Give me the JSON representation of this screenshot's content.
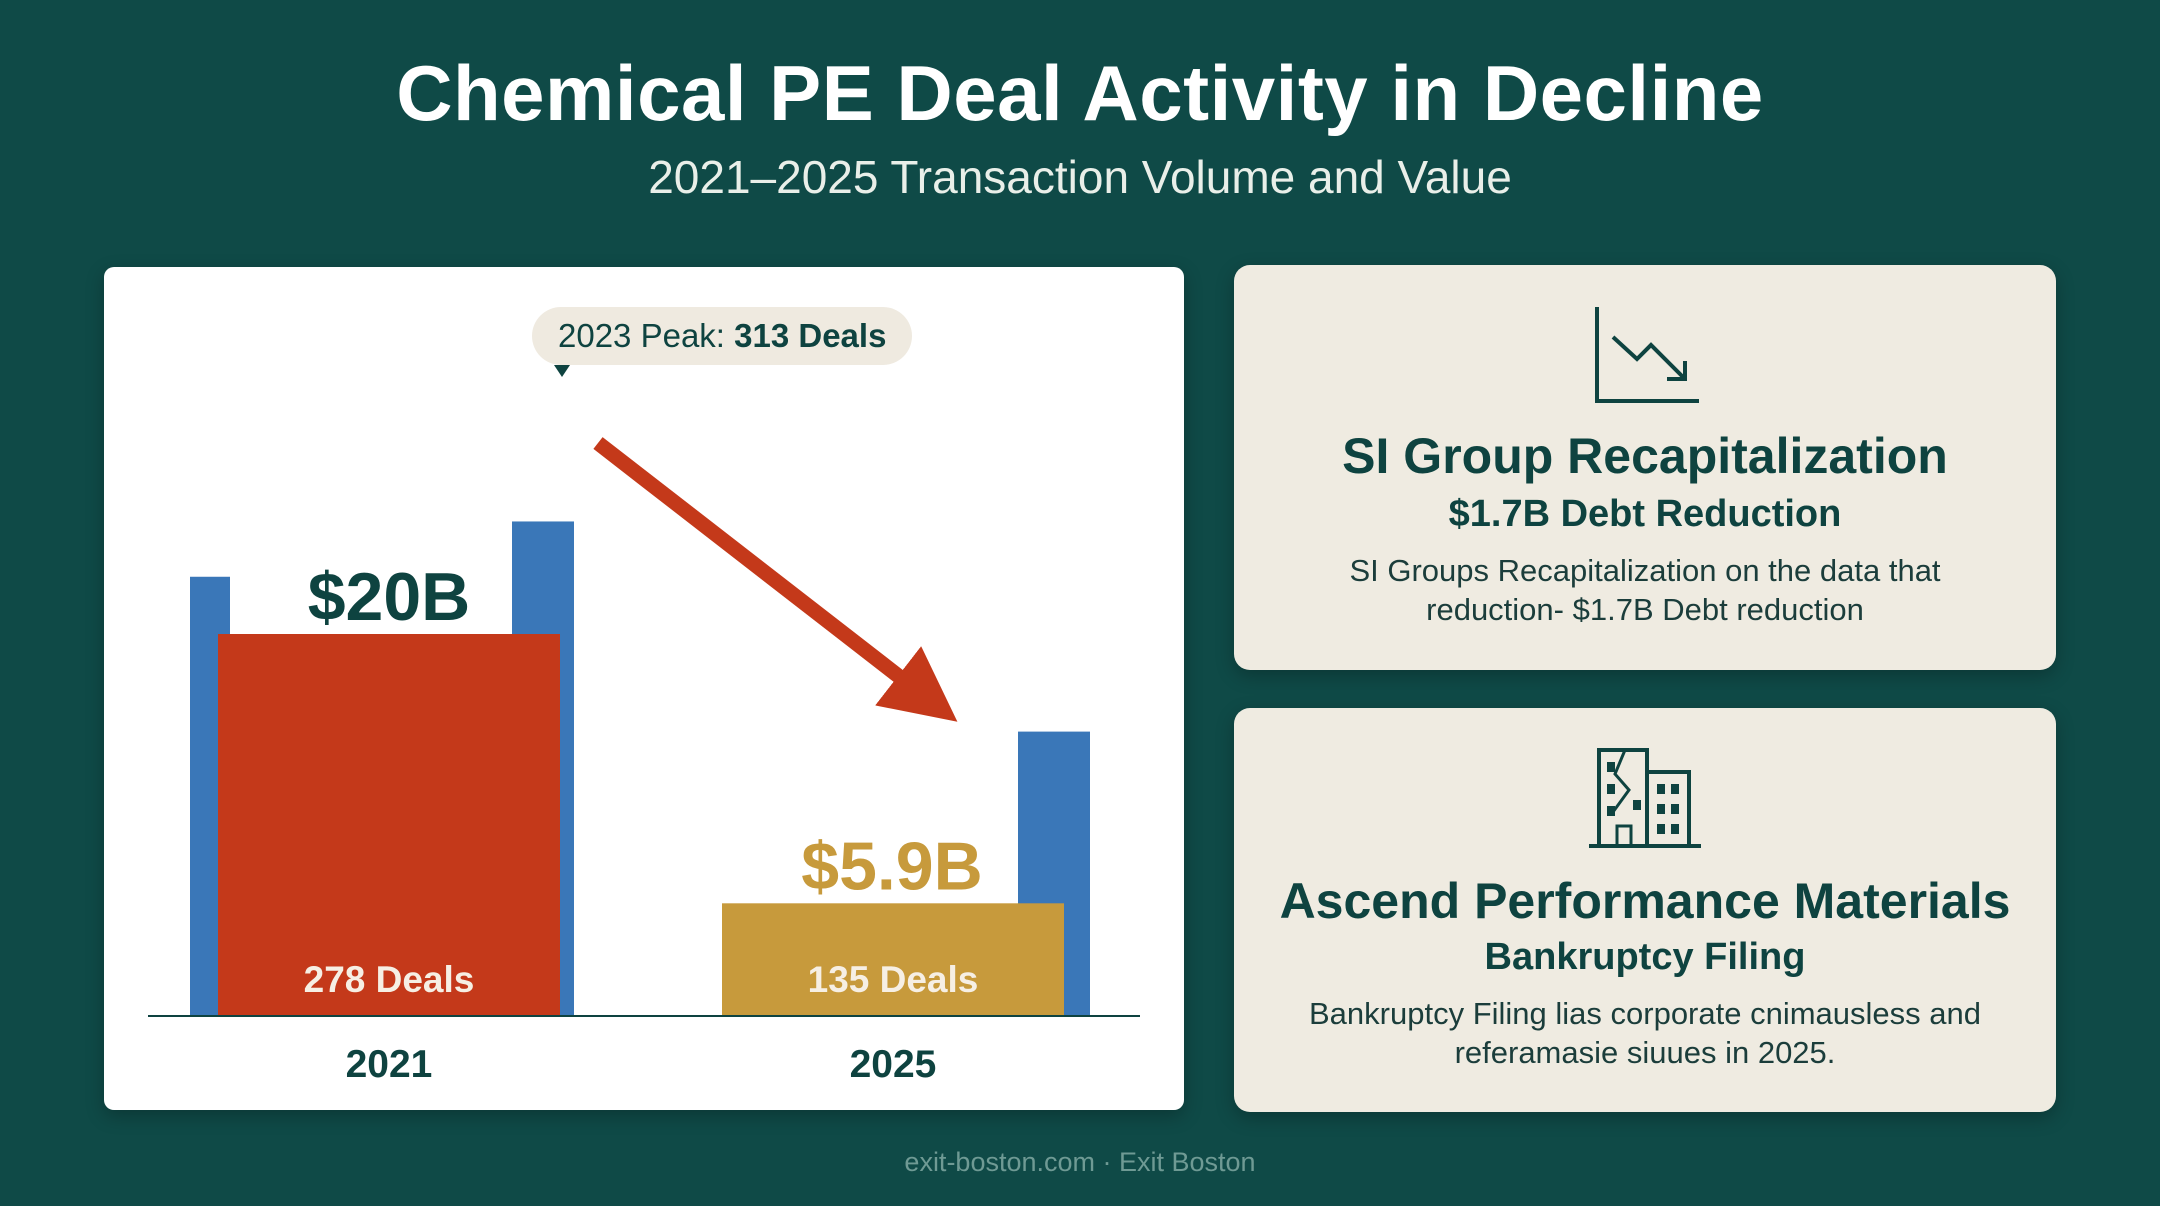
{
  "header": {
    "title": "Chemical PE Deal Activity in Decline",
    "subtitle": "2021–2025 Transaction Volume and Value"
  },
  "chart_data": {
    "type": "bar",
    "title": "Chemical PE Deal Activity in Decline",
    "subtitle": "2021–2025 Transaction Volume and Value",
    "categories": [
      "2021",
      "2025"
    ],
    "series": [
      {
        "value_labels": [
          "$20B",
          "$5.9B"
        ],
        "values": [
          20,
          5.9
        ],
        "deal_labels": [
          "278 Deals",
          "135 Deals"
        ],
        "deal_counts": [
          278,
          135
        ],
        "colors": [
          "#c4391a",
          "#c79a3c"
        ]
      }
    ],
    "volume_bars": {
      "color": "#3a77b8",
      "back_2021": 278,
      "peak_2023": 313,
      "back_2025": 135,
      "behind_2025": 180
    },
    "annotation": {
      "prefix": "2023 Peak: ",
      "bold": "313 Deals"
    },
    "trend_arrow_color": "#c4391a",
    "label_colors": {
      "2021": "#0e4340",
      "2025": "#c79a3c"
    },
    "grid": false,
    "legend": "none"
  },
  "cards": [
    {
      "icon": "trend-down-chart-icon",
      "title": "SI Group Recapitalization",
      "subtitle": "$1.7B Debt Reduction",
      "body": "SI Groups Recapitalization on the data that reduction- $1.7B Debt reduction"
    },
    {
      "icon": "cracked-building-icon",
      "title": "Ascend Performance Materials",
      "subtitle": "Bankruptcy Filing",
      "body": "Bankruptcy Filing lias corporate cnimausless and referamasie siuues in 2025."
    }
  ],
  "footer": {
    "text": "exit-boston.com · Exit Boston"
  },
  "colors": {
    "background": "#0f4a47",
    "dark_teal": "#0e4340",
    "red": "#c4391a",
    "gold": "#c79a3c",
    "blue": "#3a77b8",
    "card_bg": "#efebe1"
  }
}
